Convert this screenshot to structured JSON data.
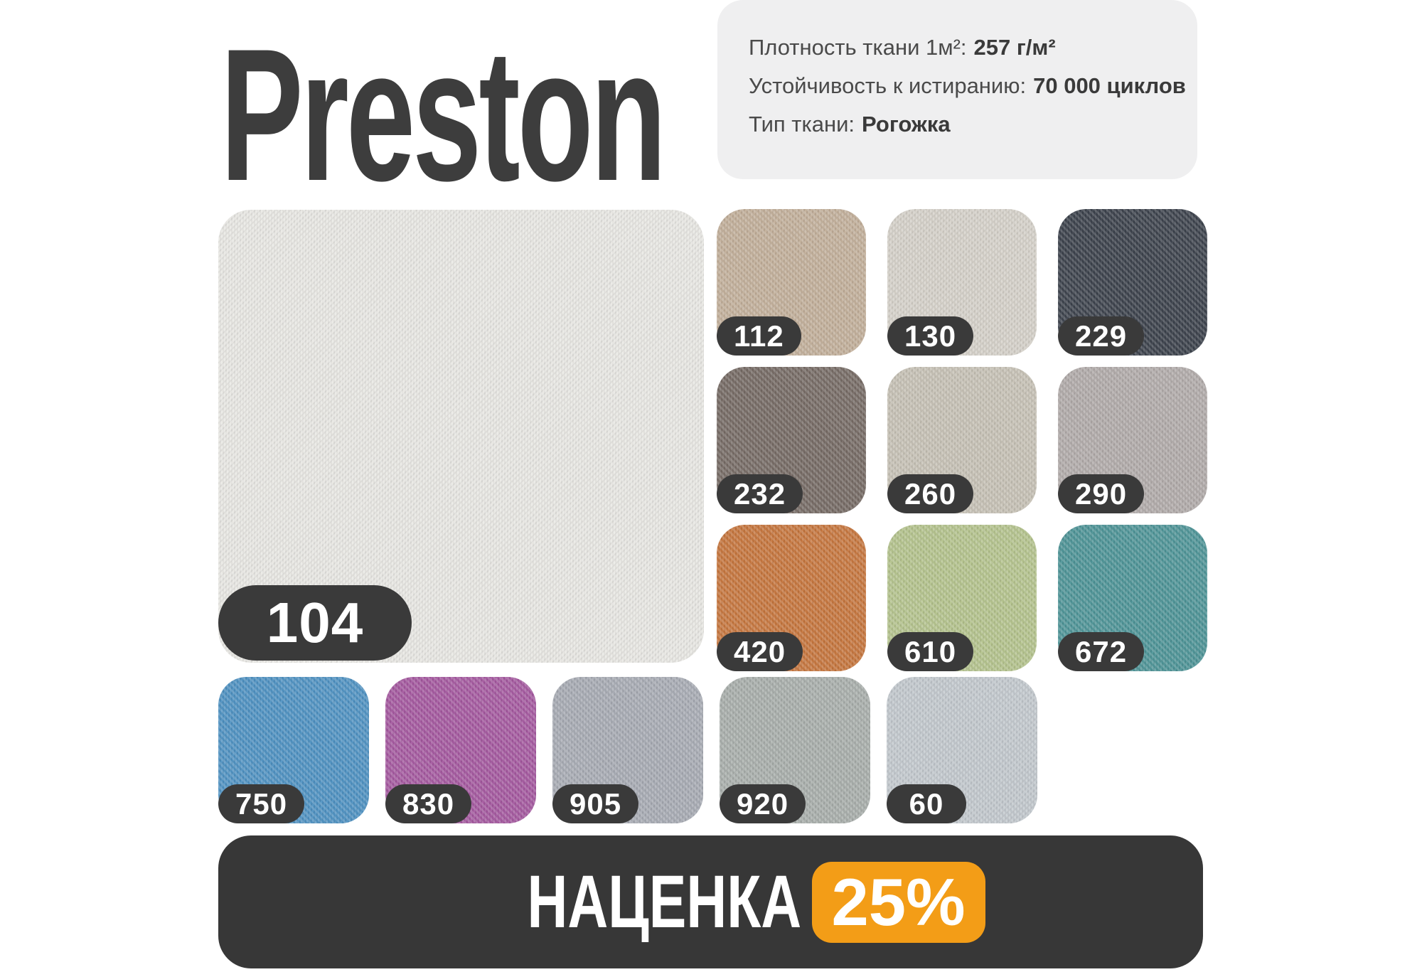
{
  "title": "Preston",
  "specs": {
    "lines": [
      {
        "label": "Плотность ткани 1м²:",
        "value": "257 г/м²"
      },
      {
        "label": "Устойчивость к истиранию:",
        "value": "70 000 циклов"
      },
      {
        "label": "Тип ткани:",
        "value": "Рогожка"
      }
    ]
  },
  "main_swatch": {
    "code": "104",
    "color": "#e9e8e4"
  },
  "grid_swatches": [
    {
      "code": "112",
      "color": "#c3b09b"
    },
    {
      "code": "130",
      "color": "#d6d2ca"
    },
    {
      "code": "229",
      "color": "#3d434d"
    },
    {
      "code": "232",
      "color": "#776c66"
    },
    {
      "code": "260",
      "color": "#c7c2b6"
    },
    {
      "code": "290",
      "color": "#b2acab"
    },
    {
      "code": "420",
      "color": "#c7773f"
    },
    {
      "code": "610",
      "color": "#b5c48e"
    },
    {
      "code": "672",
      "color": "#4f9598"
    }
  ],
  "bottom_swatches": [
    {
      "code": "750",
      "color": "#5093c3"
    },
    {
      "code": "830",
      "color": "#a65aa1"
    },
    {
      "code": "905",
      "color": "#a8acb4"
    },
    {
      "code": "920",
      "color": "#a9afac"
    },
    {
      "code": "60",
      "color": "#c3c9ce"
    }
  ],
  "markup_bar": {
    "label": "НАЦЕНКА",
    "value": "25%"
  },
  "colors": {
    "title_color": "#3d3d3d",
    "info_card_bg": "#efeff0",
    "code_badge_bg": "#3a3a3a",
    "bar_bg": "#373737",
    "accent_orange": "#f39d17",
    "badge_text": "#ffffff"
  }
}
